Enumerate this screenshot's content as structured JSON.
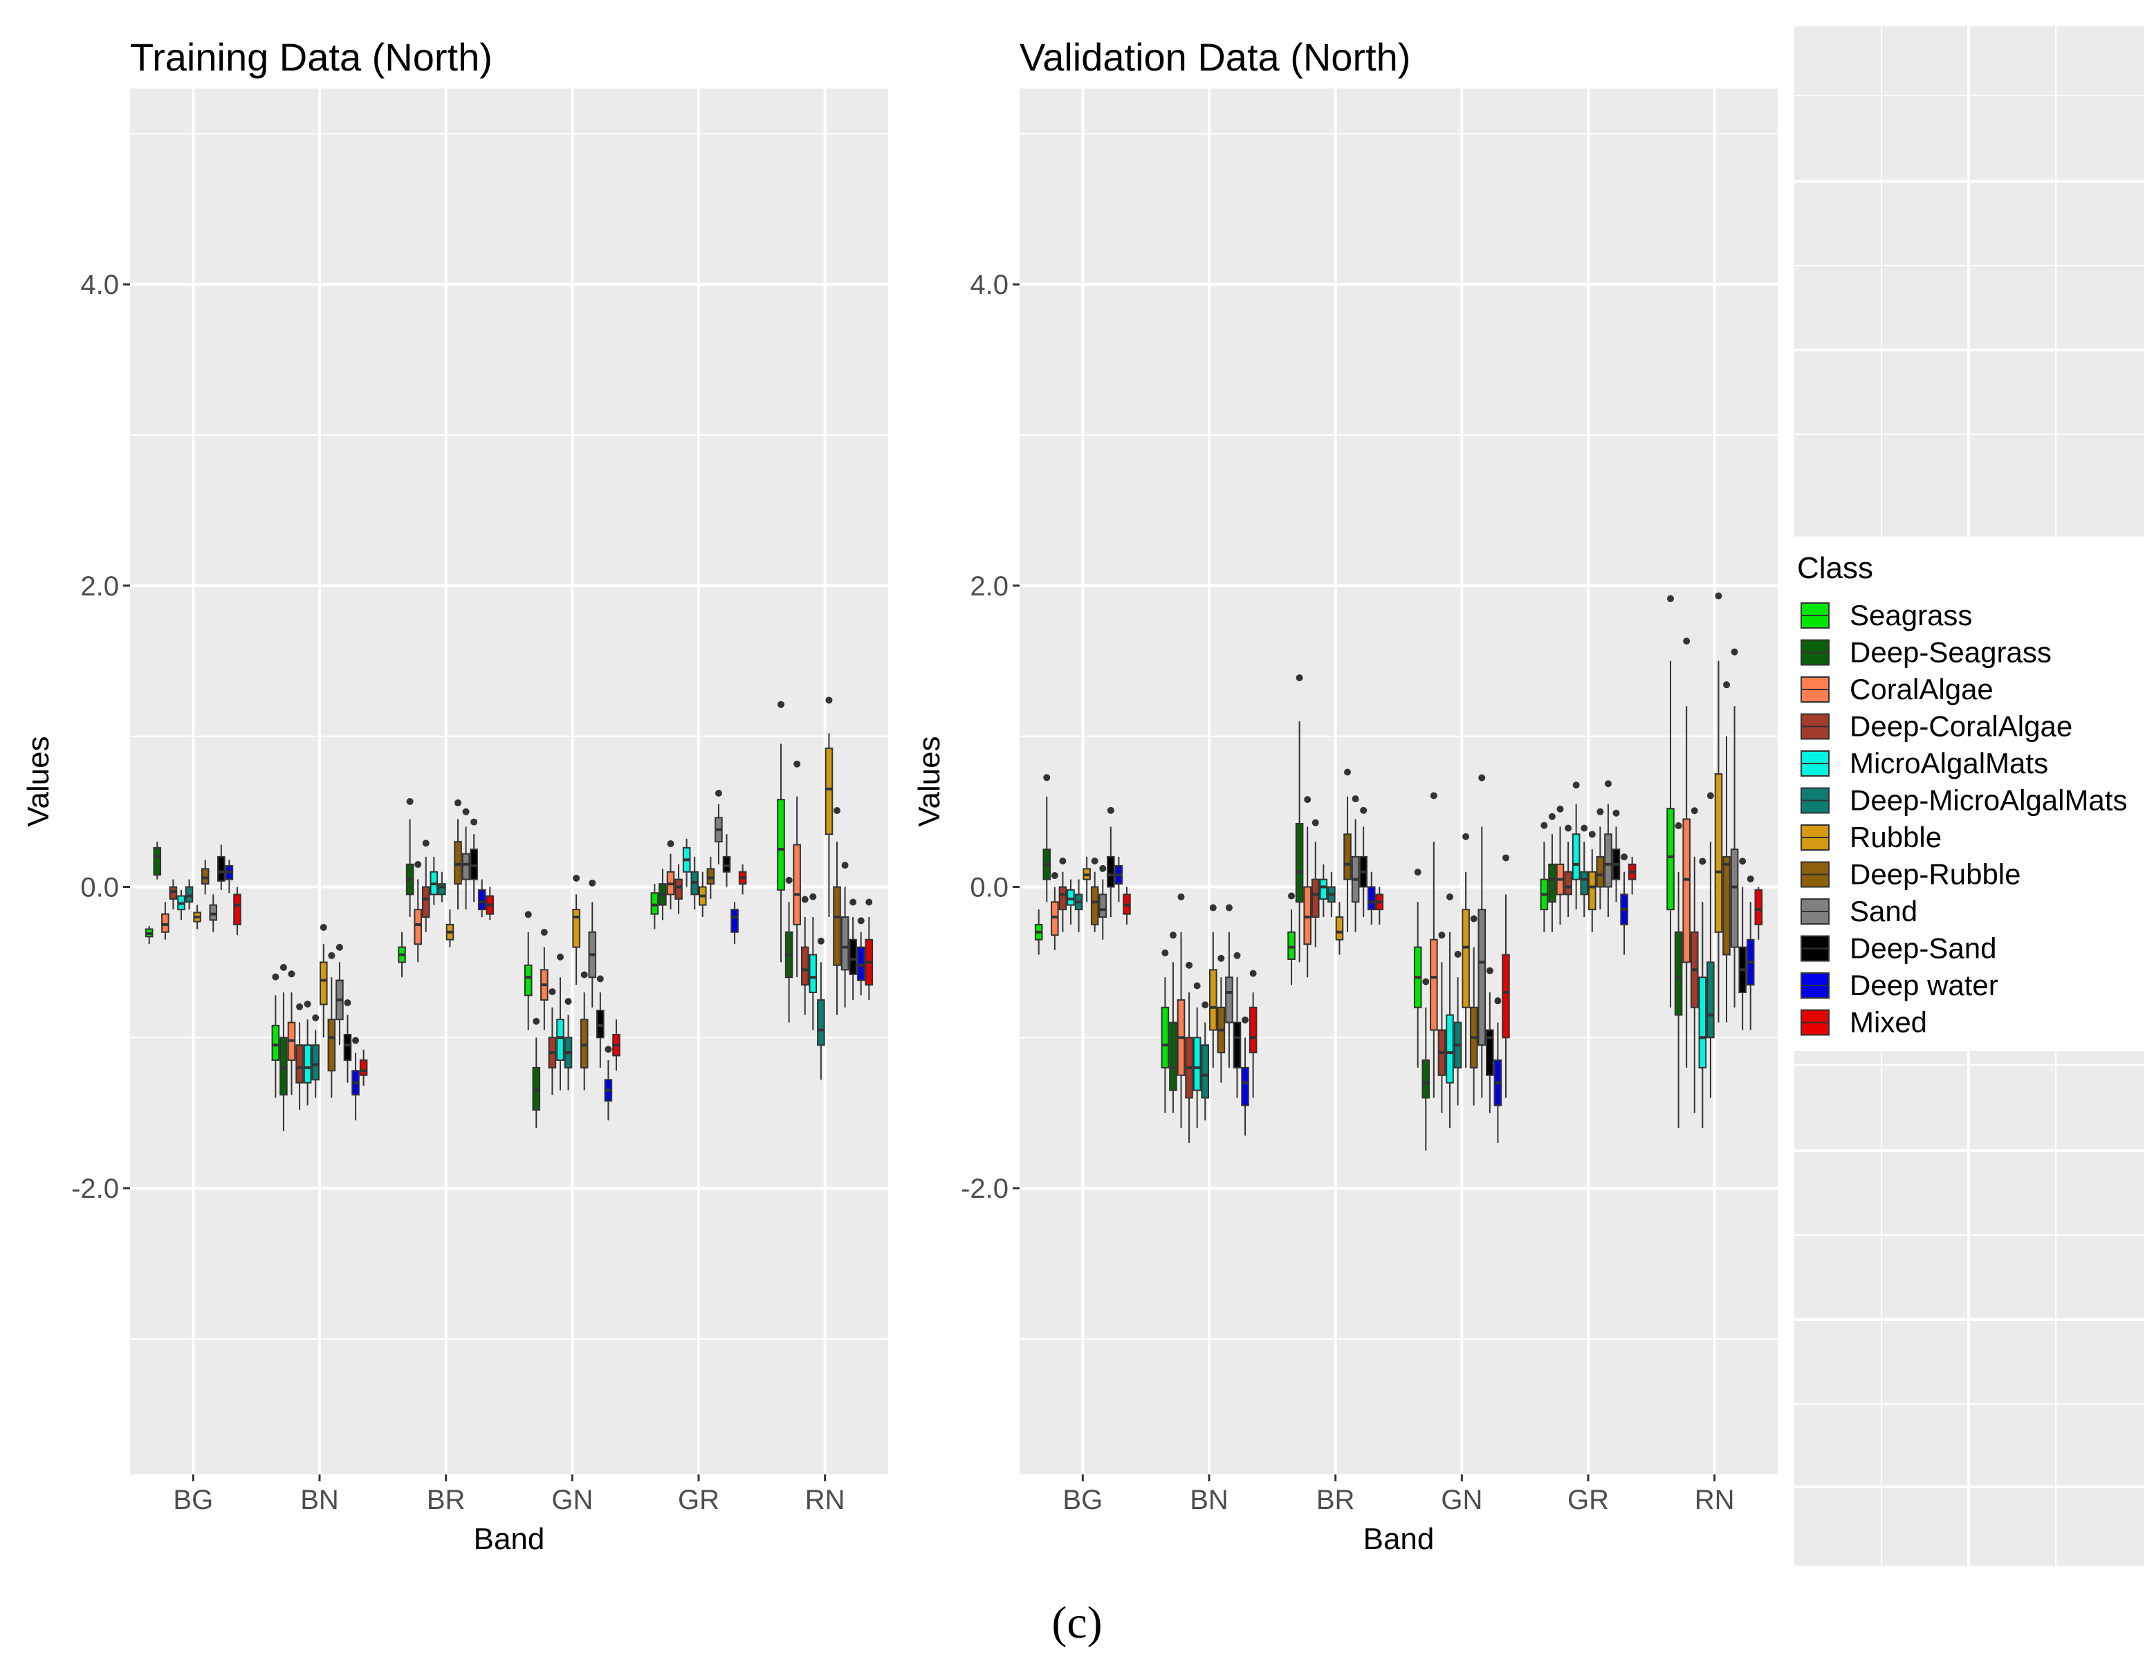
{
  "caption": "(c)",
  "chart_data": [
    {
      "type": "boxplot",
      "title": "Training Data (North)",
      "xlabel": "Band",
      "ylabel": "Values",
      "categories": [
        "BG",
        "BN",
        "BR",
        "GN",
        "GR",
        "RN"
      ],
      "ylim": [
        -3.9,
        5.3
      ],
      "yticks": [
        -2.0,
        0.0,
        2.0,
        4.0
      ],
      "ytick_labels": [
        "-2.0",
        "0.0",
        "2.0",
        "4.0"
      ],
      "boxes": {
        "BG": [
          [
            -0.33,
            -0.31,
            -0.28,
            -0.38,
            -0.26
          ],
          [
            0.08,
            0.2,
            0.26,
            0.05,
            0.3
          ],
          [
            -0.3,
            -0.25,
            -0.18,
            -0.35,
            -0.1
          ],
          [
            -0.08,
            -0.03,
            0.0,
            -0.15,
            0.05
          ],
          [
            -0.15,
            -0.11,
            -0.06,
            -0.22,
            -0.02
          ],
          [
            -0.1,
            -0.06,
            0.0,
            -0.15,
            0.05
          ],
          [
            -0.23,
            -0.2,
            -0.17,
            -0.28,
            -0.12
          ],
          [
            0.02,
            0.06,
            0.12,
            -0.05,
            0.18
          ],
          [
            -0.22,
            -0.18,
            -0.12,
            -0.3,
            -0.05
          ],
          [
            0.04,
            0.1,
            0.2,
            -0.02,
            0.28
          ],
          [
            0.05,
            0.1,
            0.14,
            -0.04,
            0.18
          ],
          [
            -0.25,
            -0.12,
            -0.05,
            -0.32,
            0.0
          ]
        ],
        "BN": [
          [
            -1.15,
            -1.05,
            -0.92,
            -1.4,
            -0.72
          ],
          [
            -1.38,
            -1.2,
            -1.0,
            -1.62,
            -0.7
          ],
          [
            -1.15,
            -1.02,
            -0.9,
            -1.38,
            -0.7
          ],
          [
            -1.3,
            -1.2,
            -1.05,
            -1.48,
            -0.9
          ],
          [
            -1.3,
            -1.2,
            -1.05,
            -1.45,
            -0.88
          ],
          [
            -1.28,
            -1.18,
            -1.05,
            -1.4,
            -0.95
          ],
          [
            -0.78,
            -0.62,
            -0.5,
            -1.0,
            -0.38
          ],
          [
            -1.22,
            -1.0,
            -0.88,
            -1.4,
            -0.6
          ],
          [
            -0.88,
            -0.75,
            -0.62,
            -1.05,
            -0.5
          ],
          [
            -1.15,
            -1.05,
            -0.98,
            -1.3,
            -0.85
          ],
          [
            -1.38,
            -1.3,
            -1.22,
            -1.55,
            -1.1
          ],
          [
            -1.25,
            -1.22,
            -1.15,
            -1.32,
            -1.08
          ]
        ],
        "BR": [
          [
            -0.5,
            -0.45,
            -0.4,
            -0.6,
            -0.3
          ],
          [
            -0.05,
            0.05,
            0.15,
            -0.2,
            0.45
          ],
          [
            -0.38,
            -0.25,
            -0.15,
            -0.5,
            0.05
          ],
          [
            -0.2,
            -0.08,
            0.0,
            -0.3,
            0.2
          ],
          [
            -0.05,
            0.02,
            0.1,
            -0.12,
            0.2
          ],
          [
            -0.05,
            0.0,
            0.02,
            -0.1,
            0.1
          ],
          [
            -0.35,
            -0.3,
            -0.25,
            -0.4,
            -0.15
          ],
          [
            0.02,
            0.15,
            0.3,
            -0.15,
            0.45
          ],
          [
            0.05,
            0.15,
            0.22,
            -0.15,
            0.4
          ],
          [
            0.05,
            0.14,
            0.25,
            -0.1,
            0.35
          ],
          [
            -0.15,
            -0.1,
            -0.02,
            -0.2,
            0.05
          ],
          [
            -0.18,
            -0.12,
            -0.06,
            -0.22,
            0.0
          ]
        ],
        "GN": [
          [
            -0.72,
            -0.6,
            -0.52,
            -0.95,
            -0.3
          ],
          [
            -1.48,
            -1.35,
            -1.2,
            -1.6,
            -1.0
          ],
          [
            -0.75,
            -0.65,
            -0.55,
            -0.95,
            -0.4
          ],
          [
            -1.2,
            -1.1,
            -1.0,
            -1.38,
            -0.8
          ],
          [
            -1.15,
            -1.0,
            -0.88,
            -1.35,
            -0.6
          ],
          [
            -1.2,
            -1.1,
            -1.0,
            -1.35,
            -0.85
          ],
          [
            -0.4,
            -0.2,
            -0.15,
            -0.65,
            -0.05
          ],
          [
            -1.2,
            -1.05,
            -0.88,
            -1.35,
            -0.7
          ],
          [
            -0.6,
            -0.45,
            -0.3,
            -0.8,
            -0.1
          ],
          [
            -1.0,
            -0.92,
            -0.82,
            -1.2,
            -0.7
          ],
          [
            -1.42,
            -1.35,
            -1.28,
            -1.55,
            -1.15
          ],
          [
            -1.12,
            -1.05,
            -0.98,
            -1.22,
            -0.88
          ]
        ],
        "GR": [
          [
            -0.18,
            -0.12,
            -0.04,
            -0.28,
            0.02
          ],
          [
            -0.12,
            -0.05,
            0.02,
            -0.22,
            0.12
          ],
          [
            -0.05,
            0.02,
            0.1,
            -0.15,
            0.22
          ],
          [
            -0.08,
            0.0,
            0.05,
            -0.18,
            0.15
          ],
          [
            0.1,
            0.18,
            0.26,
            0.0,
            0.32
          ],
          [
            -0.05,
            0.03,
            0.1,
            -0.15,
            0.2
          ],
          [
            -0.12,
            -0.06,
            0.0,
            -0.2,
            0.1
          ],
          [
            0.02,
            0.06,
            0.12,
            -0.08,
            0.2
          ],
          [
            0.3,
            0.38,
            0.46,
            0.15,
            0.55
          ],
          [
            0.1,
            0.14,
            0.2,
            0.0,
            0.35
          ],
          [
            -0.3,
            -0.2,
            -0.15,
            -0.38,
            -0.1
          ],
          [
            0.02,
            0.06,
            0.1,
            -0.05,
            0.15
          ]
        ],
        "RN": [
          [
            -0.02,
            0.25,
            0.58,
            -0.5,
            0.95
          ],
          [
            -0.6,
            -0.45,
            -0.3,
            -0.9,
            -0.1
          ],
          [
            -0.25,
            -0.05,
            0.28,
            -0.6,
            0.6
          ],
          [
            -0.65,
            -0.55,
            -0.4,
            -0.85,
            -0.2
          ],
          [
            -0.7,
            -0.6,
            -0.45,
            -0.95,
            -0.2
          ],
          [
            -1.05,
            -0.95,
            -0.75,
            -1.28,
            -0.5
          ],
          [
            0.35,
            0.65,
            0.92,
            -0.2,
            1.02
          ],
          [
            -0.52,
            -0.2,
            0.0,
            -0.85,
            0.3
          ],
          [
            -0.55,
            -0.4,
            -0.2,
            -0.8,
            0.0
          ],
          [
            -0.58,
            -0.48,
            -0.35,
            -0.75,
            -0.2
          ],
          [
            -0.62,
            -0.52,
            -0.4,
            -0.72,
            -0.3
          ],
          [
            -0.65,
            -0.5,
            -0.35,
            -0.75,
            -0.2
          ]
        ]
      }
    },
    {
      "type": "boxplot",
      "title": "Validation Data (North)",
      "xlabel": "Band",
      "ylabel": "Values",
      "categories": [
        "BG",
        "BN",
        "BR",
        "GN",
        "GR",
        "RN"
      ],
      "ylim": [
        -3.9,
        5.3
      ],
      "yticks": [
        -2.0,
        0.0,
        2.0,
        4.0
      ],
      "ytick_labels": [
        "-2.0",
        "0.0",
        "2.0",
        "4.0"
      ],
      "boxes": {
        "BG": [
          [
            -0.35,
            -0.3,
            -0.25,
            -0.45,
            -0.15
          ],
          [
            0.05,
            0.15,
            0.25,
            -0.1,
            0.6
          ],
          [
            -0.32,
            -0.2,
            -0.1,
            -0.42,
            0.0
          ],
          [
            -0.15,
            -0.05,
            0.0,
            -0.3,
            0.1
          ],
          [
            -0.12,
            -0.08,
            -0.02,
            -0.25,
            0.05
          ],
          [
            -0.15,
            -0.1,
            -0.05,
            -0.3,
            0.05
          ],
          [
            0.05,
            0.08,
            0.12,
            -0.1,
            0.2
          ],
          [
            -0.25,
            -0.1,
            0.0,
            -0.3,
            0.1
          ],
          [
            -0.2,
            -0.15,
            -0.05,
            -0.35,
            0.05
          ],
          [
            0.0,
            0.08,
            0.2,
            -0.2,
            0.4
          ],
          [
            0.02,
            0.08,
            0.14,
            -0.1,
            0.2
          ],
          [
            -0.18,
            -0.12,
            -0.05,
            -0.25,
            0.0
          ]
        ],
        "BN": [
          [
            -1.2,
            -1.05,
            -0.8,
            -1.5,
            -0.6
          ],
          [
            -1.35,
            -1.2,
            -0.9,
            -1.5,
            -0.5
          ],
          [
            -1.25,
            -1.0,
            -0.75,
            -1.6,
            -0.3
          ],
          [
            -1.4,
            -1.2,
            -1.0,
            -1.7,
            -0.7
          ],
          [
            -1.35,
            -1.2,
            -1.0,
            -1.6,
            -0.8
          ],
          [
            -1.4,
            -1.25,
            -1.05,
            -1.55,
            -0.9
          ],
          [
            -0.95,
            -0.8,
            -0.55,
            -1.2,
            -0.3
          ],
          [
            -1.1,
            -0.95,
            -0.8,
            -1.3,
            -0.6
          ],
          [
            -0.9,
            -0.7,
            -0.6,
            -1.2,
            -0.3
          ],
          [
            -1.2,
            -1.0,
            -0.9,
            -1.4,
            -0.6
          ],
          [
            -1.45,
            -1.3,
            -1.2,
            -1.65,
            -1.0
          ],
          [
            -1.1,
            -1.0,
            -0.8,
            -1.4,
            -0.7
          ]
        ],
        "BR": [
          [
            -0.48,
            -0.4,
            -0.3,
            -0.65,
            -0.15
          ],
          [
            -0.1,
            0.1,
            0.42,
            -0.5,
            1.1
          ],
          [
            -0.38,
            -0.2,
            0.0,
            -0.6,
            0.4
          ],
          [
            -0.2,
            -0.05,
            0.05,
            -0.4,
            0.3
          ],
          [
            -0.08,
            0.0,
            0.05,
            -0.2,
            0.15
          ],
          [
            -0.1,
            -0.05,
            0.0,
            -0.2,
            0.1
          ],
          [
            -0.35,
            -0.3,
            -0.2,
            -0.45,
            -0.1
          ],
          [
            0.05,
            0.15,
            0.35,
            -0.3,
            0.6
          ],
          [
            -0.1,
            0.05,
            0.2,
            -0.3,
            0.45
          ],
          [
            0.0,
            0.1,
            0.2,
            -0.2,
            0.4
          ],
          [
            -0.15,
            -0.1,
            0.0,
            -0.25,
            0.1
          ],
          [
            -0.15,
            -0.1,
            -0.05,
            -0.25,
            0.0
          ]
        ],
        "GN": [
          [
            -0.8,
            -0.6,
            -0.4,
            -1.2,
            -0.1
          ],
          [
            -1.4,
            -1.3,
            -1.15,
            -1.75,
            -0.8
          ],
          [
            -0.95,
            -0.6,
            -0.35,
            -1.4,
            0.3
          ],
          [
            -1.25,
            -1.1,
            -0.95,
            -1.5,
            -0.5
          ],
          [
            -1.3,
            -1.1,
            -0.85,
            -1.6,
            -0.3
          ],
          [
            -1.2,
            -1.05,
            -0.9,
            -1.45,
            -0.6
          ],
          [
            -0.8,
            -0.4,
            -0.15,
            -1.2,
            0.1
          ],
          [
            -1.2,
            -1.0,
            -0.8,
            -1.45,
            -0.4
          ],
          [
            -1.05,
            -0.5,
            -0.15,
            -1.4,
            0.4
          ],
          [
            -1.25,
            -1.0,
            -0.95,
            -1.5,
            -0.7
          ],
          [
            -1.45,
            -1.3,
            -1.15,
            -1.7,
            -0.9
          ],
          [
            -1.0,
            -0.7,
            -0.45,
            -1.4,
            -0.05
          ]
        ],
        "GR": [
          [
            -0.15,
            -0.05,
            0.05,
            -0.3,
            0.3
          ],
          [
            -0.1,
            0.05,
            0.15,
            -0.3,
            0.35
          ],
          [
            -0.05,
            0.05,
            0.15,
            -0.25,
            0.4
          ],
          [
            -0.05,
            0.0,
            0.1,
            -0.2,
            0.3
          ],
          [
            0.05,
            0.15,
            0.35,
            -0.15,
            0.55
          ],
          [
            -0.05,
            0.05,
            0.1,
            -0.2,
            0.3
          ],
          [
            -0.15,
            0.0,
            0.1,
            -0.3,
            0.25
          ],
          [
            0.0,
            0.08,
            0.2,
            -0.15,
            0.4
          ],
          [
            0.0,
            0.15,
            0.35,
            -0.2,
            0.55
          ],
          [
            0.05,
            0.15,
            0.25,
            -0.1,
            0.4
          ],
          [
            -0.25,
            -0.15,
            -0.05,
            -0.45,
            0.1
          ],
          [
            0.05,
            0.1,
            0.15,
            -0.05,
            0.2
          ]
        ],
        "RN": [
          [
            -0.15,
            0.2,
            0.52,
            -0.8,
            1.5
          ],
          [
            -0.85,
            -0.6,
            -0.3,
            -1.6,
            0.1
          ],
          [
            -0.5,
            0.05,
            0.45,
            -1.2,
            1.2
          ],
          [
            -0.8,
            -0.55,
            -0.3,
            -1.5,
            0.2
          ],
          [
            -1.2,
            -1.0,
            -0.6,
            -1.6,
            -0.1
          ],
          [
            -1.0,
            -0.85,
            -0.5,
            -1.4,
            0.3
          ],
          [
            -0.3,
            0.1,
            0.75,
            -0.9,
            1.5
          ],
          [
            -0.45,
            0.15,
            0.2,
            -0.9,
            1.0
          ],
          [
            -0.4,
            0.0,
            0.25,
            -0.8,
            1.2
          ],
          [
            -0.7,
            -0.55,
            -0.4,
            -0.95,
            0.0
          ],
          [
            -0.65,
            -0.5,
            -0.35,
            -0.95,
            -0.1
          ],
          [
            -0.25,
            -0.15,
            -0.02,
            -0.35,
            0.0
          ]
        ]
      }
    }
  ],
  "legend": {
    "title": "Class",
    "entries": [
      {
        "name": "Seagrass",
        "color": "#00e600"
      },
      {
        "name": "Deep-Seagrass",
        "color": "#0b5f0b"
      },
      {
        "name": "CoralAlgae",
        "color": "#ff7f50"
      },
      {
        "name": "Deep-CoralAlgae",
        "color": "#a23b2a"
      },
      {
        "name": "MicroAlgalMats",
        "color": "#00f5e0"
      },
      {
        "name": "Deep-MicroAlgalMats",
        "color": "#0d7d70"
      },
      {
        "name": "Rubble",
        "color": "#d59a11"
      },
      {
        "name": "Deep-Rubble",
        "color": "#8b5f0b"
      },
      {
        "name": "Sand",
        "color": "#808080"
      },
      {
        "name": "Deep-Sand",
        "color": "#000000"
      },
      {
        "name": "Deep water",
        "color": "#0000e6"
      },
      {
        "name": "Mixed",
        "color": "#e60000"
      }
    ]
  }
}
